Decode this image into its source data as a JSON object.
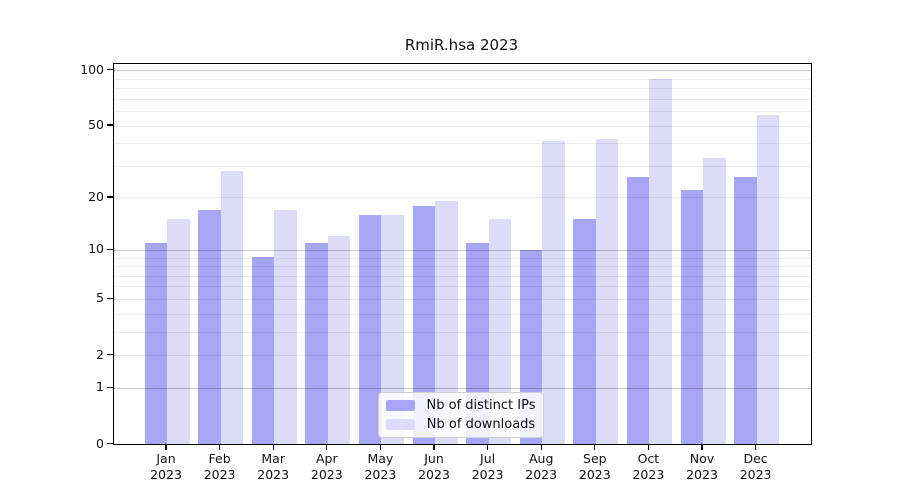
{
  "chart_data": {
    "type": "bar",
    "title": "RmiR.hsa 2023",
    "categories": [
      "Jan",
      "Feb",
      "Mar",
      "Apr",
      "May",
      "Jun",
      "Jul",
      "Aug",
      "Sep",
      "Oct",
      "Nov",
      "Dec"
    ],
    "category_year": "2023",
    "series": [
      {
        "name": "Nb of distinct IPs",
        "color": "#a6a6f4",
        "values": [
          11,
          17,
          9,
          11,
          16,
          18,
          11,
          10,
          15,
          26,
          22,
          26
        ]
      },
      {
        "name": "Nb of downloads",
        "color": "#dcdcf8",
        "values": [
          15,
          28,
          17,
          12,
          16,
          19,
          15,
          41,
          42,
          90,
          33,
          57
        ]
      }
    ],
    "y_axis": {
      "scale": "log1p",
      "ticks": [
        0,
        1,
        2,
        5,
        10,
        20,
        50,
        100
      ],
      "major_gridlines": [
        1,
        10,
        100
      ],
      "minor_gridlines": [
        2,
        3,
        4,
        5,
        6,
        7,
        8,
        9,
        20,
        30,
        40,
        50,
        60,
        70,
        80,
        90
      ],
      "ylim": [
        0,
        108
      ]
    },
    "legend": {
      "position": "bottom-center"
    },
    "grid": true
  }
}
